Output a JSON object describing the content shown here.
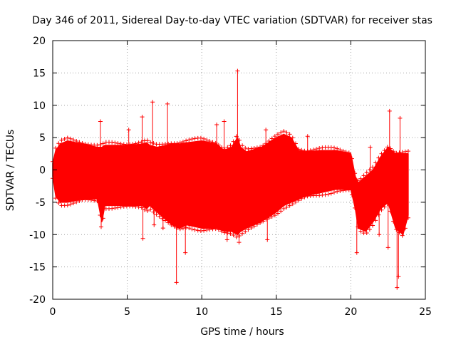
{
  "chart_data": {
    "type": "scatter",
    "title": "Day 346 of 2011, Sidereal Day-to-day VTEC variation (SDTVAR) for receiver stas",
    "xlabel": "GPS time / hours",
    "ylabel": "SDTVAR / TECUs",
    "xlim": [
      0,
      25
    ],
    "ylim": [
      -20,
      20
    ],
    "xticks": [
      0,
      5,
      10,
      15,
      20,
      25
    ],
    "yticks": [
      -20,
      -15,
      -10,
      -5,
      0,
      5,
      10,
      15,
      20
    ],
    "grid": true,
    "marker": "+",
    "series_color": "#ff0000",
    "envelope": {
      "x": [
        0.0,
        0.2,
        0.5,
        1.0,
        2.0,
        3.0,
        3.3,
        3.5,
        5.0,
        6.0,
        6.3,
        6.5,
        7.0,
        8.0,
        8.5,
        9.0,
        10.0,
        11.0,
        11.5,
        12.0,
        12.4,
        12.6,
        13.0,
        14.0,
        15.0,
        15.5,
        16.0,
        16.5,
        17.0,
        18.0,
        19.0,
        20.0,
        20.3,
        20.5,
        21.0,
        21.5,
        22.0,
        22.5,
        23.0,
        23.5,
        23.85
      ],
      "upper": [
        1.0,
        3.0,
        4.0,
        4.5,
        4.0,
        3.5,
        3.5,
        3.8,
        3.8,
        4.0,
        4.2,
        3.8,
        3.5,
        4.0,
        4.0,
        4.2,
        4.5,
        4.0,
        3.0,
        3.5,
        5.0,
        3.5,
        2.8,
        3.5,
        5.0,
        5.5,
        5.0,
        3.0,
        2.8,
        3.0,
        3.0,
        2.5,
        -1.0,
        -2.0,
        -1.0,
        0.0,
        2.0,
        3.5,
        2.5,
        2.5,
        2.5
      ],
      "lower": [
        -1.0,
        -4.0,
        -5.0,
        -5.0,
        -4.5,
        -4.5,
        -8.0,
        -5.5,
        -5.5,
        -5.5,
        -6.0,
        -5.5,
        -6.5,
        -8.5,
        -9.0,
        -8.5,
        -9.0,
        -9.0,
        -9.5,
        -9.5,
        -10.0,
        -9.5,
        -9.0,
        -8.0,
        -6.5,
        -5.5,
        -5.0,
        -4.5,
        -4.0,
        -3.5,
        -3.0,
        -3.0,
        -6.0,
        -9.0,
        -9.5,
        -8.0,
        -6.0,
        -5.0,
        -9.0,
        -10.0,
        -7.0
      ]
    },
    "spikes": [
      {
        "x": 3.2,
        "y": 7.5
      },
      {
        "x": 3.25,
        "y": -8.8
      },
      {
        "x": 5.1,
        "y": 6.2
      },
      {
        "x": 6.0,
        "y": 8.2
      },
      {
        "x": 6.05,
        "y": -10.6
      },
      {
        "x": 6.7,
        "y": 10.5
      },
      {
        "x": 6.8,
        "y": -8.5
      },
      {
        "x": 7.4,
        "y": -9.0
      },
      {
        "x": 7.7,
        "y": 10.2
      },
      {
        "x": 8.3,
        "y": -17.4
      },
      {
        "x": 8.9,
        "y": -12.8
      },
      {
        "x": 11.0,
        "y": 7.0
      },
      {
        "x": 11.5,
        "y": 7.5
      },
      {
        "x": 11.7,
        "y": -10.8
      },
      {
        "x": 12.4,
        "y": 15.3
      },
      {
        "x": 12.5,
        "y": -11.2
      },
      {
        "x": 14.3,
        "y": 6.2
      },
      {
        "x": 14.4,
        "y": -10.8
      },
      {
        "x": 17.1,
        "y": 5.2
      },
      {
        "x": 20.4,
        "y": -12.8
      },
      {
        "x": 21.3,
        "y": 3.5
      },
      {
        "x": 21.9,
        "y": -10.0
      },
      {
        "x": 22.5,
        "y": -12.0
      },
      {
        "x": 22.6,
        "y": 9.1
      },
      {
        "x": 23.1,
        "y": -18.2
      },
      {
        "x": 23.2,
        "y": -16.5
      },
      {
        "x": 23.3,
        "y": 8.0
      }
    ]
  }
}
